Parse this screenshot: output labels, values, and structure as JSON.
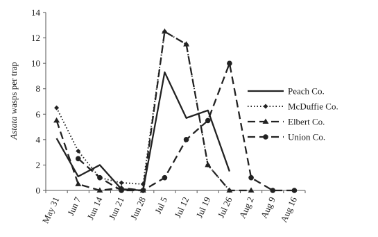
{
  "chart_data": {
    "type": "line",
    "ylabel_italic": "Astata",
    "ylabel_rest": " wasps per trap",
    "xlabel": "",
    "ylim": [
      0,
      14
    ],
    "yticks": [
      0,
      2,
      4,
      6,
      8,
      10,
      12,
      14
    ],
    "grid": false,
    "legend_position": "right",
    "categories": [
      "May 31",
      "Jun 7",
      "Jun 14",
      "Jun 21",
      "Jun 28",
      "Jul 5",
      "Jul 12",
      "Jul 19",
      "Jul 26",
      "Aug 2",
      "Aug 9",
      "Aug 16"
    ],
    "series": [
      {
        "name": "Peach Co.",
        "style": "solid",
        "marker": "none",
        "color": "#222222",
        "values": [
          4.1,
          1.1,
          2.0,
          0.1,
          0.0,
          9.3,
          5.7,
          6.3,
          1.5,
          null,
          null,
          null
        ]
      },
      {
        "name": "McDuffie Co.",
        "style": "dotted",
        "marker": "diamond",
        "color": "#222222",
        "values": [
          6.5,
          3.1,
          1.0,
          0.6,
          0.5,
          12.5,
          11.5,
          2.0,
          0.0,
          null,
          null,
          null
        ]
      },
      {
        "name": "Elbert Co.",
        "style": "dashed",
        "marker": "triangle",
        "color": "#222222",
        "values": [
          5.5,
          0.5,
          0.0,
          0.2,
          0.0,
          12.5,
          11.5,
          2.0,
          0.0,
          0.0,
          null,
          null
        ]
      },
      {
        "name": "Union Co.",
        "style": "dashed",
        "marker": "circle",
        "color": "#222222",
        "values": [
          null,
          2.5,
          1.0,
          0.0,
          0.0,
          1.0,
          4.0,
          5.5,
          10.0,
          1.0,
          0.0,
          0.0
        ]
      }
    ]
  }
}
